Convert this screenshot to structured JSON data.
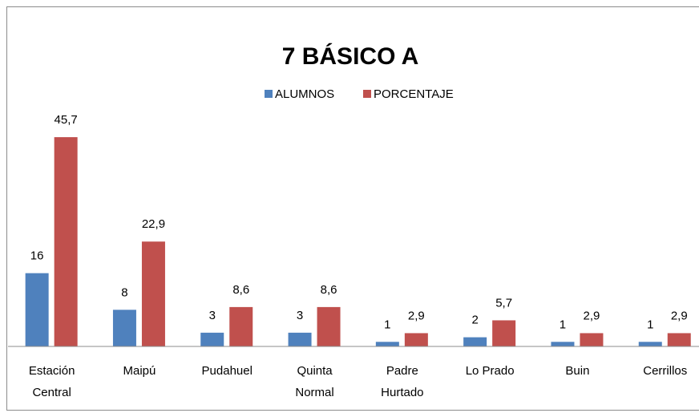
{
  "chart_data": {
    "type": "bar",
    "title": "7 BÁSICO A",
    "categories": [
      [
        "Estación",
        "Central"
      ],
      [
        "Maipú"
      ],
      [
        "Pudahuel"
      ],
      [
        "Quinta",
        "Normal"
      ],
      [
        "Padre",
        "Hurtado"
      ],
      [
        "Lo Prado"
      ],
      [
        "Buin"
      ],
      [
        "Cerrillos"
      ]
    ],
    "series": [
      {
        "name": "ALUMNOS",
        "color": "#4f81bd",
        "values": [
          16,
          8,
          3,
          3,
          1,
          2,
          1,
          1
        ]
      },
      {
        "name": "PORCENTAJE",
        "color": "#c0504d",
        "values": [
          45.7,
          22.9,
          8.6,
          8.6,
          2.9,
          5.7,
          2.9,
          2.9
        ],
        "value_labels": [
          "45,7",
          "22,9",
          "8,6",
          "8,6",
          "2,9",
          "5,7",
          "2,9",
          "2,9"
        ]
      }
    ],
    "ylim": [
      0,
      50
    ],
    "legend": "top"
  }
}
